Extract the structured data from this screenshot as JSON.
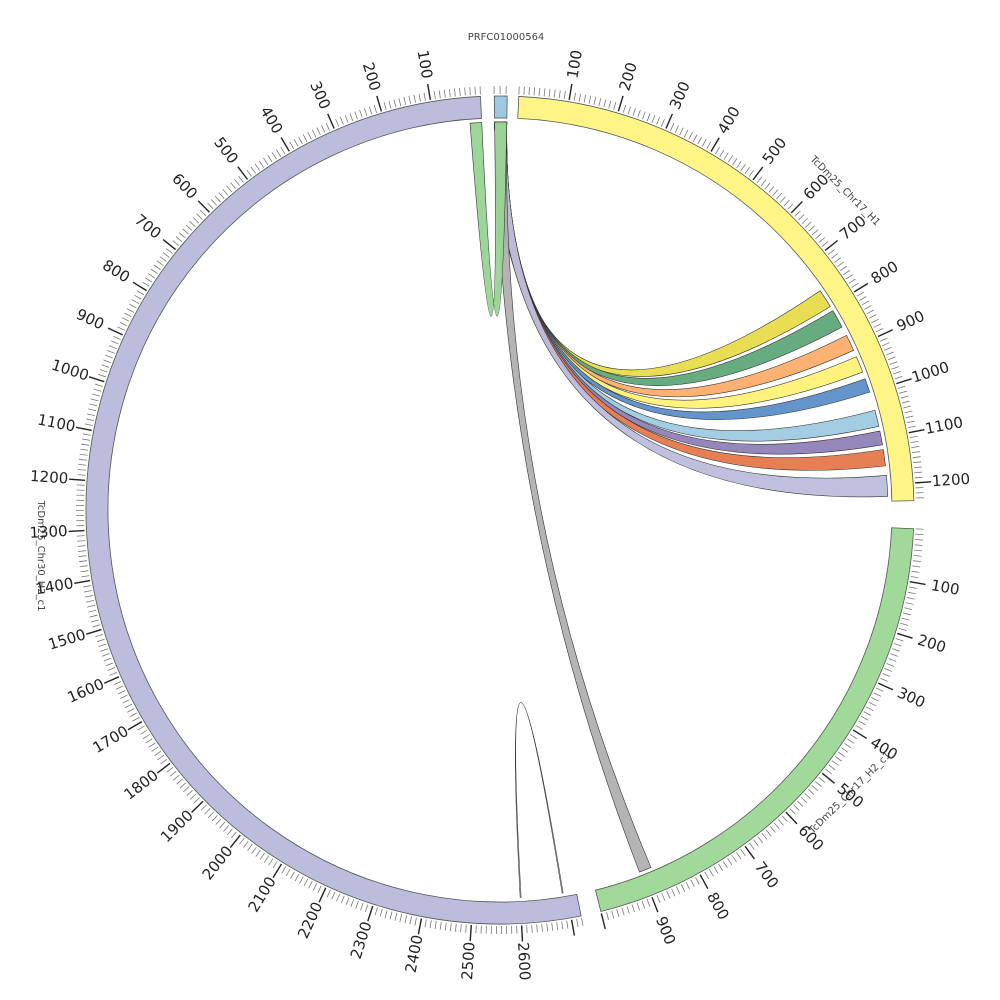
{
  "chart_data": {
    "type": "chord",
    "title": "",
    "segments": [
      {
        "name": "PRFC01000564",
        "length": 22,
        "color": "#9ecae1",
        "tick_labels": []
      },
      {
        "name": "TcDm25_Chr17_H1",
        "length": 1235,
        "color": "#fff587",
        "tick_labels": [
          "100",
          "200",
          "300",
          "400",
          "500",
          "600",
          "700",
          "800",
          "900",
          "1000",
          "1100",
          "1200"
        ]
      },
      {
        "name": "TcDm25_Chr17_H2_c1",
        "length": 1000,
        "color": "#a1d99b",
        "tick_labels": [
          "100",
          "200",
          "300",
          "400",
          "500",
          "600",
          "700",
          "800",
          "900"
        ]
      },
      {
        "name": "TcDm25_Chr30_H2_c1",
        "length": 2720,
        "color": "#bcbddc",
        "tick_labels": [
          "100",
          "200",
          "300",
          "400",
          "500",
          "600",
          "700",
          "800",
          "900",
          "1000",
          "1100",
          "1200",
          "1300",
          "1400",
          "1500",
          "1600",
          "1700",
          "1800",
          "1900",
          "2000",
          "2100",
          "2200",
          "2300",
          "2400",
          "2500",
          "2600"
        ]
      }
    ],
    "links": [
      {
        "source": "PRFC01000564",
        "source_range": [
          0,
          22
        ],
        "target": "TcDm25_Chr17_H1",
        "target_range": [
          760,
          800
        ],
        "color": "#e8dc4a"
      },
      {
        "source": "PRFC01000564",
        "source_range": [
          0,
          22
        ],
        "target": "TcDm25_Chr17_H1",
        "target_range": [
          810,
          850
        ],
        "color": "#5fa87a"
      },
      {
        "source": "PRFC01000564",
        "source_range": [
          0,
          22
        ],
        "target": "TcDm25_Chr17_H1",
        "target_range": [
          870,
          905
        ],
        "color": "#fdae6b"
      },
      {
        "source": "PRFC01000564",
        "source_range": [
          0,
          22
        ],
        "target": "TcDm25_Chr17_H1",
        "target_range": [
          920,
          955
        ],
        "color": "#fff176"
      },
      {
        "source": "PRFC01000564",
        "source_range": [
          0,
          22
        ],
        "target": "TcDm25_Chr17_H1",
        "target_range": [
          970,
          1000
        ],
        "color": "#5b8ec9"
      },
      {
        "source": "PRFC01000564",
        "source_range": [
          0,
          22
        ],
        "target": "TcDm25_Chr17_H1",
        "target_range": [
          1040,
          1075
        ],
        "color": "#9ecae1"
      },
      {
        "source": "PRFC01000564",
        "source_range": [
          0,
          22
        ],
        "target": "TcDm25_Chr17_H1",
        "target_range": [
          1085,
          1115
        ],
        "color": "#8f7fb8"
      },
      {
        "source": "PRFC01000564",
        "source_range": [
          0,
          22
        ],
        "target": "TcDm25_Chr17_H1",
        "target_range": [
          1125,
          1160
        ],
        "color": "#e6784c"
      },
      {
        "source": "PRFC01000564",
        "source_range": [
          0,
          22
        ],
        "target": "TcDm25_Chr17_H1",
        "target_range": [
          1180,
          1225
        ],
        "color": "#bcbddc"
      },
      {
        "source": "PRFC01000564",
        "source_range": [
          0,
          22
        ],
        "target": "TcDm25_Chr17_H2_c1",
        "target_range": [
          880,
          905
        ],
        "color": "#b0b0b0"
      },
      {
        "source": "PRFC01000564",
        "source_range": [
          0,
          22
        ],
        "target": "TcDm25_Chr30_H2_c1",
        "target_range": [
          0,
          25
        ],
        "color": "#98d494"
      },
      {
        "source": "TcDm25_Chr30_H2_c1",
        "source_range": [
          2600,
          2602
        ],
        "target": "TcDm25_Chr30_H2_c1",
        "target_range": [
          2690,
          2692
        ],
        "color": "#ffffff"
      }
    ]
  }
}
